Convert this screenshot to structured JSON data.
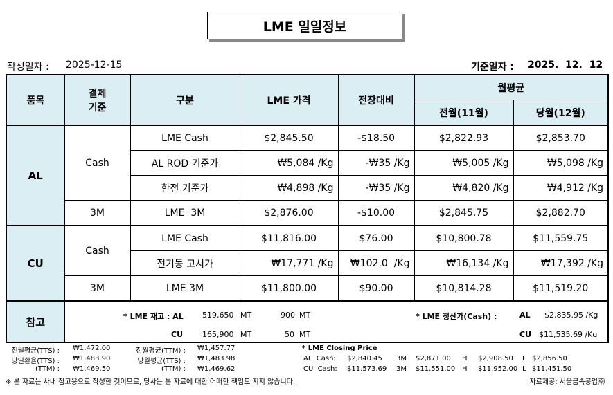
{
  "header": {
    "title": "LME 일일정보",
    "created_label": "작성일자 :",
    "created_date": "2025-12-15",
    "base_label": "기준일자 :",
    "base_date": "2025.  12.  12"
  },
  "table": {
    "head": {
      "item": "품목",
      "basis": [
        "결제",
        "기준"
      ],
      "category": "구분",
      "price": "LME 가격",
      "change": "전장대비",
      "monthly_avg": "월평균",
      "prev_month": "전월(11월)",
      "curr_month": "당월(12월)"
    },
    "groups": [
      {
        "name": "AL",
        "bases": [
          {
            "label": "Cash",
            "rows": [
              {
                "category": "LME Cash",
                "price": "$2,845.50",
                "change": "-$18.50",
                "prev": "$2,822.93",
                "curr": "$2,853.70"
              },
              {
                "category": "AL ROD 기준가",
                "price": "₩5,084 /Kg",
                "change": "-₩35 /Kg",
                "prev": "₩5,005 /Kg",
                "curr": "₩5,098 /Kg"
              },
              {
                "category": "한전 기준가",
                "price": "₩4,898 /Kg",
                "change": "-₩35 /Kg",
                "prev": "₩4,820 /Kg",
                "curr": "₩4,912 /Kg"
              }
            ]
          },
          {
            "label": "3M",
            "rows": [
              {
                "category": "LME  3M",
                "price": "$2,876.00",
                "change": "-$10.00",
                "prev": "$2,845.75",
                "curr": "$2,882.70"
              }
            ]
          }
        ]
      },
      {
        "name": "CU",
        "bases": [
          {
            "label": "Cash",
            "rows": [
              {
                "category": "LME Cash",
                "price": "$11,816.00",
                "change": "$76.00",
                "prev": "$10,800.78",
                "curr": "$11,559.75"
              },
              {
                "category": "전기동 고시가",
                "price": "₩17,771 /Kg",
                "change": "₩102.0  /Kg",
                "prev": "₩16,134 /Kg",
                "curr": "₩17,392 /Kg"
              }
            ]
          },
          {
            "label": "3M",
            "rows": [
              {
                "category": "LME 3M",
                "price": "$11,800.00",
                "change": "$90.00",
                "prev": "$10,814.28",
                "curr": "$11,519.20"
              }
            ]
          }
        ]
      }
    ],
    "reference": {
      "label": "참고",
      "stock": {
        "title": "* LME 재고 : AL",
        "al": {
          "amount": "519,650",
          "unit": "MT",
          "change": "900",
          "change_unit": "MT"
        },
        "cu": {
          "label": "CU",
          "amount": "165,900",
          "unit": "MT",
          "change": "50",
          "change_unit": "MT"
        }
      },
      "settlement": {
        "title": "* LME 정산가(Cash) :",
        "al_label": "AL",
        "al_value": "$2,835.95 /Kg",
        "cu_label": "CU",
        "cu_value": "$11,535.69 /Kg"
      }
    }
  },
  "footer": {
    "rates": [
      [
        "전월평균(TTS) :",
        "₩1,472.00",
        "전월평균(TTM) :",
        "₩1,457.77"
      ],
      [
        "당일환율(TTS) :",
        "₩1,483.90",
        "당월평균(TTS) :",
        "₩1,483.98"
      ],
      [
        "(TTM) :",
        "₩1,469.50",
        "(TTM) :",
        "₩1,469.62"
      ]
    ],
    "closing": {
      "title": "* LME Closing Price",
      "rows": [
        [
          "AL  Cash:",
          "$2,840.45",
          "3M",
          "$2,871.00",
          "H",
          "$2,908.50",
          "L",
          "$2,856.50"
        ],
        [
          "CU  Cash:",
          "$11,573.69",
          "3M",
          "$11,551.00",
          "H",
          "$11,952.00",
          "L",
          "$11,451.50"
        ]
      ]
    },
    "notice": "※ 본 자료는 사내 참고용으로 작성한 것이므로, 당사는 본 자료에 대한 어떠한 책임도 지지 않습니다.",
    "source": "자료제공: 서울금속공업㈜"
  }
}
